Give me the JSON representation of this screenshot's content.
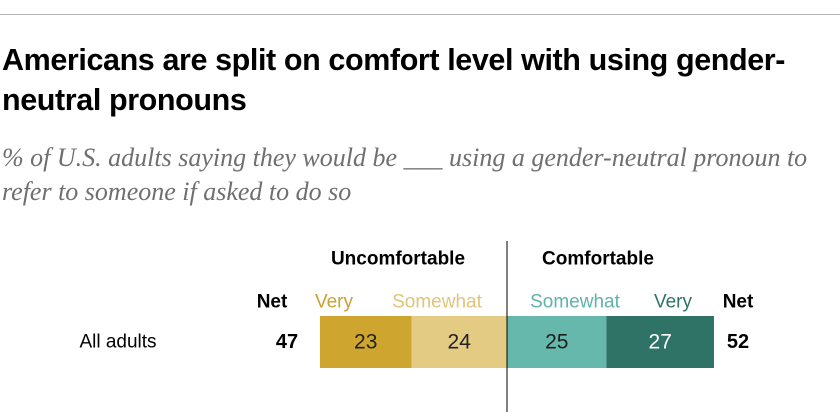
{
  "title": "Americans are split on comfort level with using gender-neutral pronouns",
  "subtitle": "% of U.S. adults saying they would be ___ using a gender-neutral pronoun to refer to someone if asked to do so",
  "chart_data": {
    "type": "bar",
    "orientation": "horizontal",
    "stacking": "diverging",
    "groups": {
      "left": "Uncomfortable",
      "right": "Comfortable"
    },
    "net_label": "Net",
    "categories": [
      "All adults"
    ],
    "series": [
      {
        "name": "Very",
        "group": "Uncomfortable",
        "values": [
          23
        ],
        "color": "#cea52f"
      },
      {
        "name": "Somewhat",
        "group": "Uncomfortable",
        "values": [
          24
        ],
        "color": "#e4cb83"
      },
      {
        "name": "Somewhat",
        "group": "Comfortable",
        "values": [
          25
        ],
        "color": "#66b8ac"
      },
      {
        "name": "Very",
        "group": "Comfortable",
        "values": [
          27
        ],
        "color": "#2f7366"
      }
    ],
    "net_values": {
      "Uncomfortable": [
        47
      ],
      "Comfortable": [
        52
      ]
    },
    "colors": {
      "uncomfortable_very": "#cea52f",
      "uncomfortable_somewhat": "#e4cb83",
      "comfortable_somewhat": "#66b8ac",
      "comfortable_very": "#2f7366",
      "legend_uncomfortable_very": "#c9a233",
      "legend_uncomfortable_somewhat": "#e0c47a",
      "legend_comfortable_somewhat": "#5fb3a8",
      "legend_comfortable_very": "#2f7366"
    }
  }
}
